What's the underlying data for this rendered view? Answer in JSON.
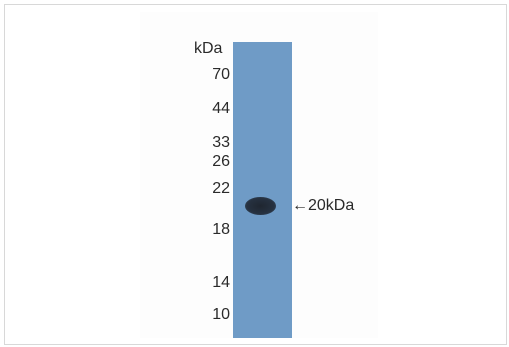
{
  "blot": {
    "unit_header": "kDa",
    "markers": [
      "70",
      "44",
      "33",
      "26",
      "22",
      "18",
      "14",
      "10"
    ],
    "band_label": "←20kDa",
    "lane_color": "#6f9bc6",
    "band_color": "#263140"
  }
}
